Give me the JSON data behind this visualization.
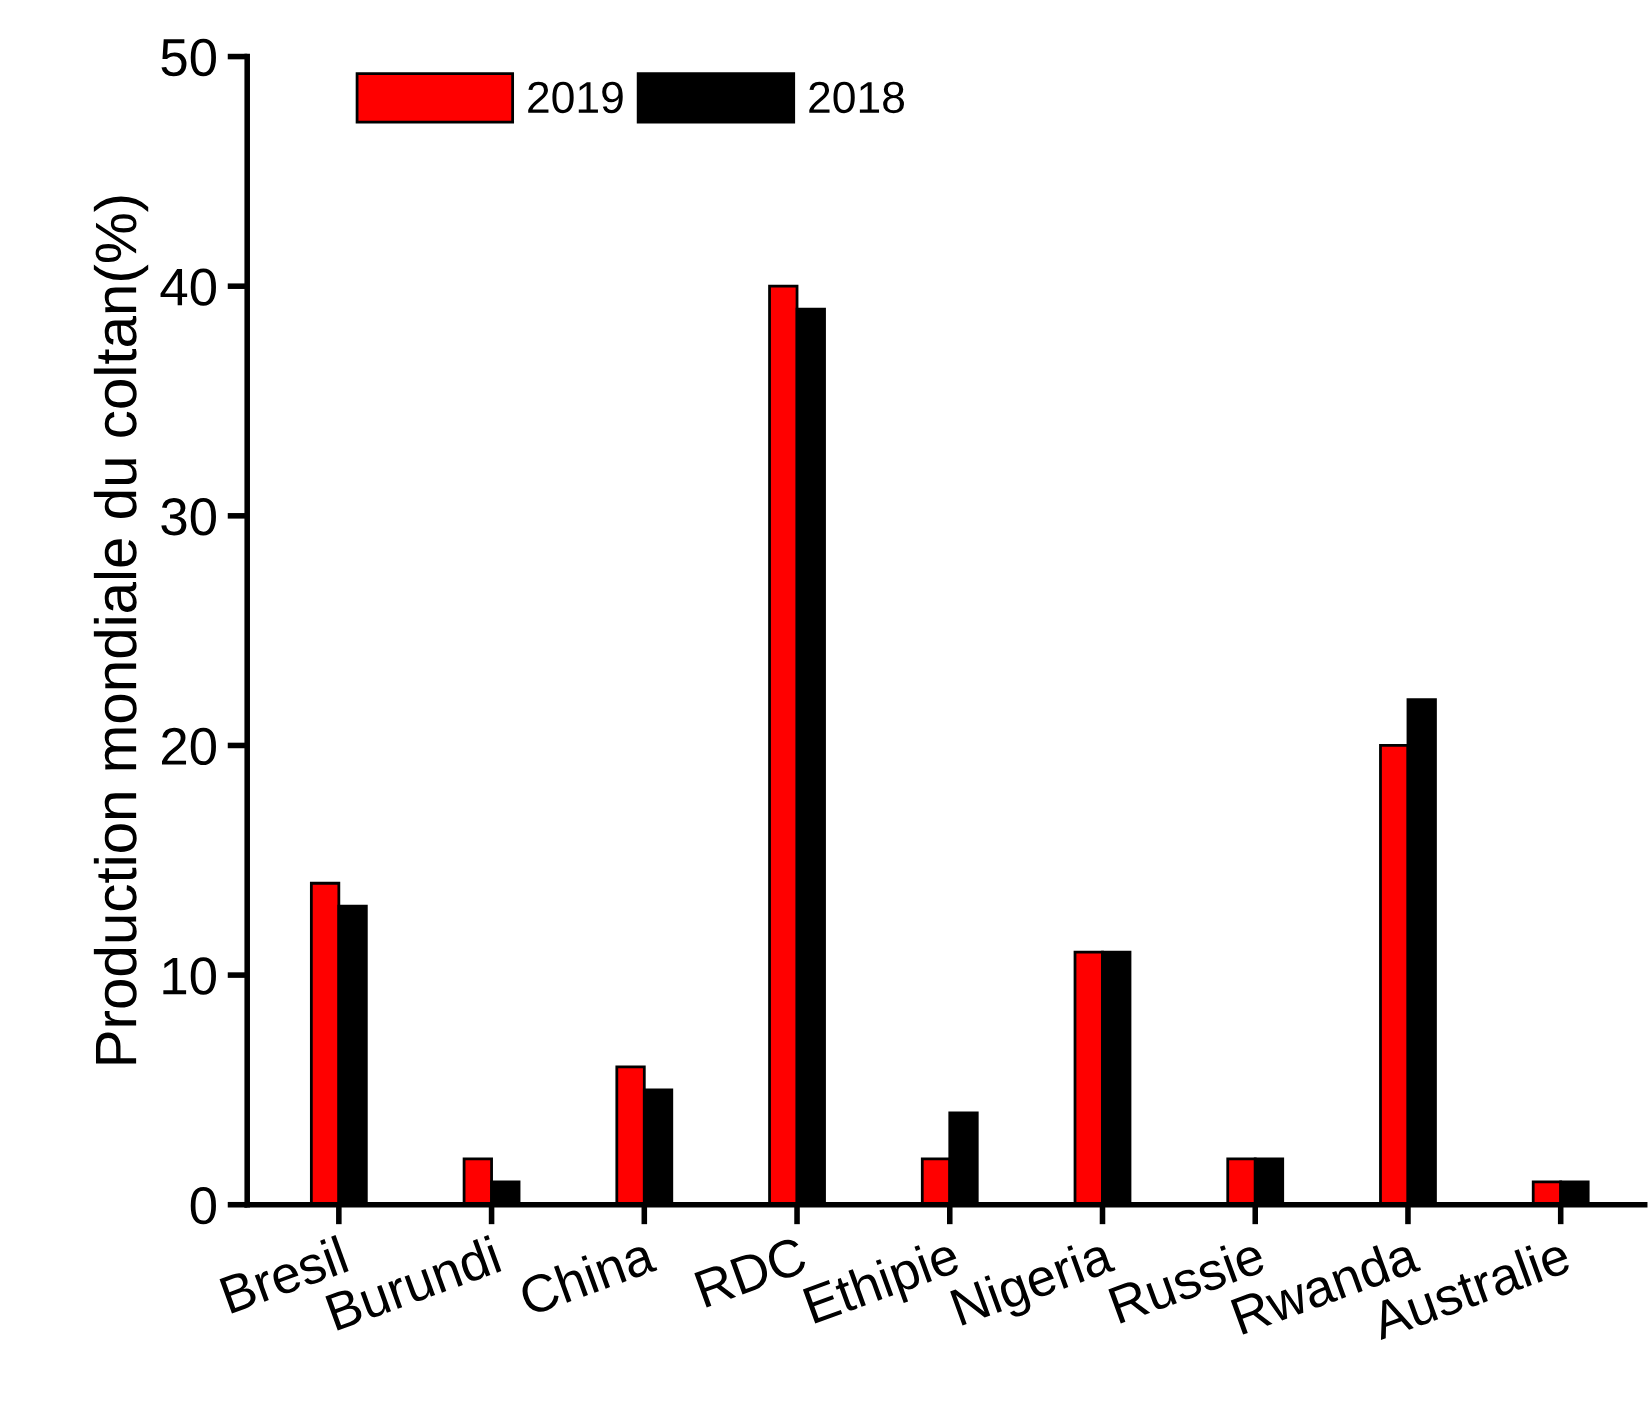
{
  "chart_data": {
    "type": "bar",
    "ylabel": "Production mondiale du coltan(%)",
    "categories": [
      "Bresil",
      "Burundi",
      "China",
      "RDC",
      "Ethipie",
      "Nigeria",
      "Russie",
      "Rwanda",
      "Australie"
    ],
    "series": [
      {
        "name": "2019",
        "color": "#ff0000",
        "values": [
          14,
          2,
          6,
          40,
          2,
          11,
          2,
          20,
          1
        ]
      },
      {
        "name": "2018",
        "color": "#000000",
        "values": [
          13,
          1,
          5,
          39,
          4,
          11,
          2,
          22,
          1
        ]
      }
    ],
    "ylim": [
      0,
      50
    ],
    "yticks": [
      0,
      10,
      20,
      30,
      40,
      50
    ],
    "legend": "top left",
    "grid": false
  }
}
